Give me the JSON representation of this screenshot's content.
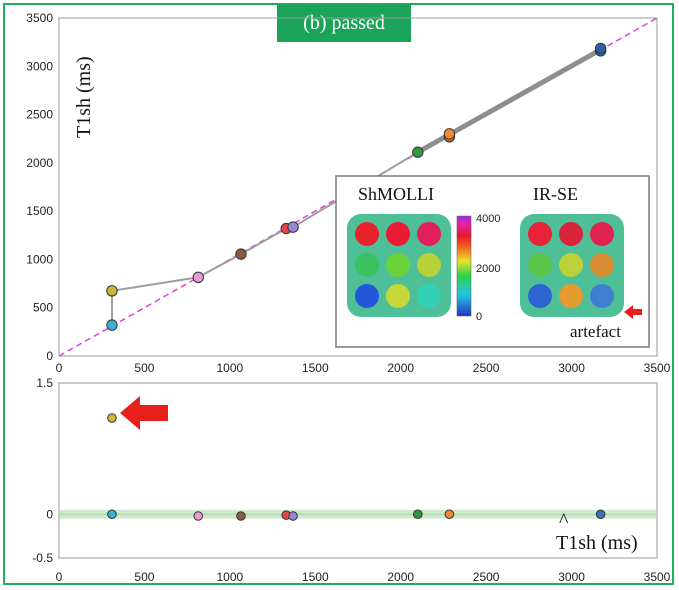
{
  "badge_label": "(b) passed",
  "chart_data": [
    {
      "type": "scatter",
      "ylabel": "T1sh (ms)",
      "xlim": [
        0,
        3500
      ],
      "ylim": [
        0,
        3500
      ],
      "xticks": [
        0,
        500,
        1000,
        1500,
        2000,
        2500,
        3000,
        3500
      ],
      "yticks": [
        0,
        500,
        1000,
        1500,
        2000,
        2500,
        3000,
        3500
      ],
      "identity_line": true,
      "points": [
        {
          "x": 310,
          "y": 320,
          "color": "#3ab0d8"
        },
        {
          "x": 310,
          "y": 675,
          "color": "#c9b93a"
        },
        {
          "x": 815,
          "y": 815,
          "color": "#e79ad6"
        },
        {
          "x": 1065,
          "y": 1055,
          "color": "#8a5a44"
        },
        {
          "x": 1330,
          "y": 1320,
          "color": "#e0454a"
        },
        {
          "x": 1370,
          "y": 1335,
          "color": "#9a86d2"
        },
        {
          "x": 2100,
          "y": 2110,
          "color": "#2e9a3f"
        },
        {
          "x": 2285,
          "y": 2270,
          "color": "#cf6b2e"
        },
        {
          "x": 2285,
          "y": 2300,
          "color": "#f08a30"
        },
        {
          "x": 3170,
          "y": 3160,
          "color": "#3672b8"
        },
        {
          "x": 3170,
          "y": 3185,
          "color": "#2f5f9e"
        }
      ],
      "inset": {
        "left_title": "ShMOLLI",
        "right_title": "IR-SE",
        "colorbar_ticks": [
          "4000",
          "2000",
          "0"
        ],
        "annotation": "artefact",
        "left_grid": [
          [
            "#e8222a",
            "#ea1c33",
            "#e01f5c"
          ],
          [
            "#39c25f",
            "#6ad33a",
            "#b7d138"
          ],
          [
            "#2356d8",
            "#c7d63b",
            "#34d0b5"
          ]
        ],
        "right_grid": [
          [
            "#e82238",
            "#d9243c",
            "#e02250"
          ],
          [
            "#5bc44a",
            "#b9d23a",
            "#d88d33"
          ],
          [
            "#2c64d2",
            "#e69b31",
            "#3f7fd2"
          ]
        ]
      }
    },
    {
      "type": "scatter",
      "xlabel": "T1sh (ms)",
      "xlim": [
        0,
        3500
      ],
      "ylim": [
        -0.5,
        1.5
      ],
      "xticks": [
        0,
        500,
        1000,
        1500,
        2000,
        2500,
        3000,
        3500
      ],
      "yticks": [
        -0.5,
        0,
        1.5
      ],
      "band": [
        -0.05,
        0.05
      ],
      "points": [
        {
          "x": 310,
          "y": 0.0,
          "color": "#3ab0d8"
        },
        {
          "x": 310,
          "y": 1.1,
          "color": "#c9b93a"
        },
        {
          "x": 815,
          "y": -0.02,
          "color": "#e79ad6"
        },
        {
          "x": 1065,
          "y": -0.02,
          "color": "#8a5a44"
        },
        {
          "x": 1330,
          "y": -0.01,
          "color": "#e0454a"
        },
        {
          "x": 1370,
          "y": -0.02,
          "color": "#9a86d2"
        },
        {
          "x": 2100,
          "y": 0.0,
          "color": "#2e9a3f"
        },
        {
          "x": 2285,
          "y": 0.0,
          "color": "#f08a30"
        },
        {
          "x": 3170,
          "y": 0.0,
          "color": "#3672b8"
        }
      ]
    }
  ]
}
